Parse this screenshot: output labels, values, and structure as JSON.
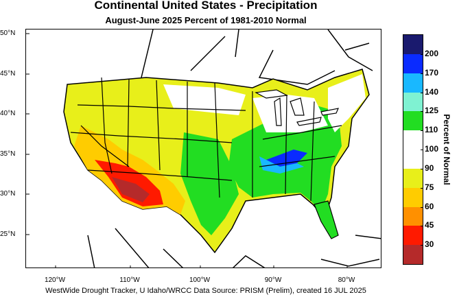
{
  "title": "Continental United States - Precipitation",
  "subtitle": "August-June 2025  Percent of 1981-2010 Normal",
  "lat_labels": [
    "50°N",
    "45°N",
    "40°N",
    "35°N",
    "30°N",
    "25°N"
  ],
  "lon_labels": [
    "120°W",
    "110°W",
    "100°W",
    "90°W",
    "80°W"
  ],
  "legend": {
    "title": "Percent of Normal",
    "ticks": [
      "200",
      "170",
      "140",
      "125",
      "110",
      "100",
      "90",
      "75",
      "60",
      "45",
      "30"
    ],
    "colors": [
      "#1a1a6e",
      "#0a2bff",
      "#19b8ff",
      "#7ff2d2",
      "#22dd22",
      "#ffffff",
      "#ffffff",
      "#e8ef1a",
      "#ffcc00",
      "#ff9000",
      "#ff1a00",
      "#b52a2a"
    ]
  },
  "credit": "WestWide Drought Tracker, U Idaho/WRCC Data Source: PRISM (Prelim), created 16 JUL 2025",
  "colors": {
    "very_dry": "#b52a2a",
    "dry_red": "#ff1a00",
    "dry_orange": "#ff9000",
    "dry_gold": "#ffcc00",
    "dry_yellow": "#e8ef1a",
    "normal": "#ffffff",
    "wet_green": "#22dd22",
    "wet_aqua": "#7ff2d2",
    "wet_cyan": "#19b8ff",
    "wet_blue": "#0a2bff",
    "wet_navy": "#1a1a6e"
  }
}
